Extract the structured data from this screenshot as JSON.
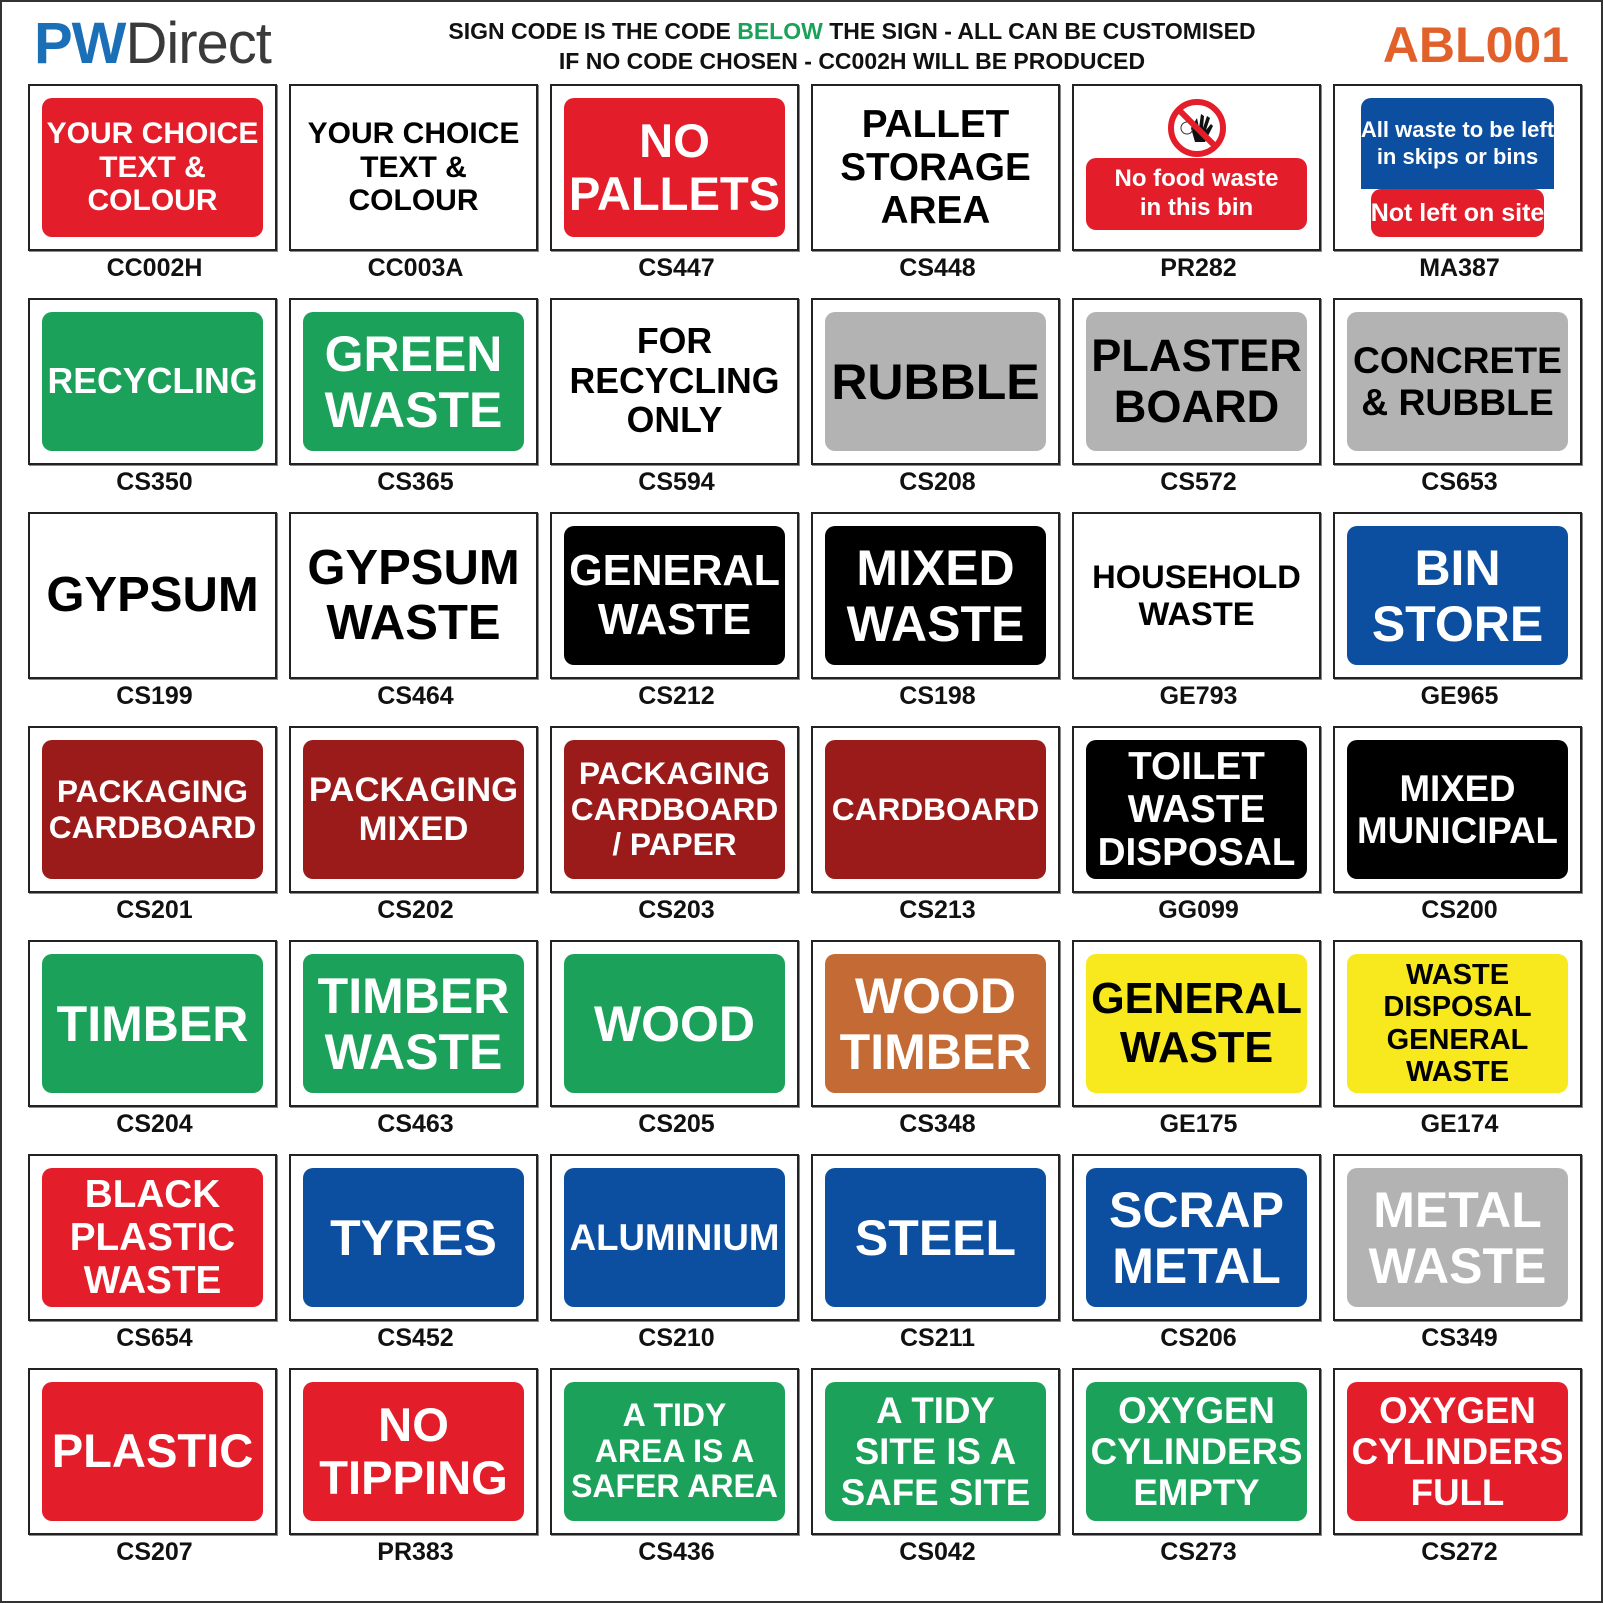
{
  "header": {
    "logo_pw": "PW",
    "logo_direct": "Direct",
    "line1_a": "SIGN CODE IS THE CODE ",
    "line1_highlight": "BELOW",
    "line1_b": " THE SIGN - ALL CAN BE CUSTOMISED",
    "line2": "IF NO CODE CHOSEN - CC002H WILL BE PRODUCED",
    "ref": "ABL001",
    "highlight_color": "#1ba15a",
    "ref_color": "#e2612a"
  },
  "colors": {
    "red": "#e31e2a",
    "green": "#1ba15a",
    "grey": "#b3b3b3",
    "black": "#000000",
    "maroon": "#9b1a1a",
    "blue": "#0c4fa0",
    "yellow": "#f7e91e",
    "orange": "#c46a34",
    "white": "#ffffff"
  },
  "signs": [
    {
      "code": "CC002H",
      "text": "YOUR CHOICE\nTEXT &\nCOLOUR",
      "bg": "red",
      "fg": "white"
    },
    {
      "code": "CC003A",
      "text": "YOUR CHOICE\nTEXT &\nCOLOUR",
      "bg": "white",
      "fg": "black"
    },
    {
      "code": "CS447",
      "text": "NO\nPALLETS",
      "bg": "red",
      "fg": "white"
    },
    {
      "code": "CS448",
      "text": "PALLET\nSTORAGE\nAREA",
      "bg": "white",
      "fg": "black"
    },
    {
      "code": "PR282",
      "type": "prohibition",
      "icon": "no-touching-prohibition-icon",
      "text": "No food waste\nin this bin",
      "bg": "red",
      "fg": "white"
    },
    {
      "code": "MA387",
      "type": "split",
      "text": "All waste to be left\nin skips or bins",
      "text2": "Not left on site",
      "bg": "blue",
      "bg2": "red",
      "fg": "white"
    },
    {
      "code": "CS350",
      "text": "RECYCLING",
      "bg": "green",
      "fg": "white"
    },
    {
      "code": "CS365",
      "text": "GREEN\nWASTE",
      "bg": "green",
      "fg": "white"
    },
    {
      "code": "CS594",
      "text": "FOR\nRECYCLING\nONLY",
      "bg": "white",
      "fg": "black"
    },
    {
      "code": "CS208",
      "text": "RUBBLE",
      "bg": "grey",
      "fg": "black"
    },
    {
      "code": "CS572",
      "text": "PLASTER\nBOARD",
      "bg": "grey",
      "fg": "black"
    },
    {
      "code": "CS653",
      "text": "CONCRETE\n& RUBBLE",
      "bg": "grey",
      "fg": "black"
    },
    {
      "code": "CS199",
      "text": "GYPSUM",
      "bg": "white",
      "fg": "black"
    },
    {
      "code": "CS464",
      "text": "GYPSUM\nWASTE",
      "bg": "white",
      "fg": "black"
    },
    {
      "code": "CS212",
      "text": "GENERAL\nWASTE",
      "bg": "black",
      "fg": "white"
    },
    {
      "code": "CS198",
      "text": "MIXED\nWASTE",
      "bg": "black",
      "fg": "white"
    },
    {
      "code": "GE793",
      "text": "HOUSEHOLD\nWASTE",
      "bg": "white",
      "fg": "black"
    },
    {
      "code": "GE965",
      "text": "BIN\nSTORE",
      "bg": "blue",
      "fg": "white"
    },
    {
      "code": "CS201",
      "text": "PACKAGING\nCARDBOARD",
      "bg": "maroon",
      "fg": "white"
    },
    {
      "code": "CS202",
      "text": "PACKAGING\nMIXED",
      "bg": "maroon",
      "fg": "white"
    },
    {
      "code": "CS203",
      "text": "PACKAGING\nCARDBOARD\n/ PAPER",
      "bg": "maroon",
      "fg": "white"
    },
    {
      "code": "CS213",
      "text": "CARDBOARD",
      "bg": "maroon",
      "fg": "white"
    },
    {
      "code": "GG099",
      "text": "TOILET\nWASTE\nDISPOSAL",
      "bg": "black",
      "fg": "white"
    },
    {
      "code": "CS200",
      "text": "MIXED\nMUNICIPAL",
      "bg": "black",
      "fg": "white"
    },
    {
      "code": "CS204",
      "text": "TIMBER",
      "bg": "green",
      "fg": "white"
    },
    {
      "code": "CS463",
      "text": "TIMBER\nWASTE",
      "bg": "green",
      "fg": "white"
    },
    {
      "code": "CS205",
      "text": "WOOD",
      "bg": "green",
      "fg": "white"
    },
    {
      "code": "CS348",
      "text": "WOOD\nTIMBER",
      "bg": "orange",
      "fg": "white"
    },
    {
      "code": "GE175",
      "text": "GENERAL\nWASTE",
      "bg": "yellow",
      "fg": "black"
    },
    {
      "code": "GE174",
      "text": "WASTE\nDISPOSAL\nGENERAL\nWASTE",
      "bg": "yellow",
      "fg": "black"
    },
    {
      "code": "CS654",
      "text": "BLACK\nPLASTIC\nWASTE",
      "bg": "red",
      "fg": "white"
    },
    {
      "code": "CS452",
      "text": "TYRES",
      "bg": "blue",
      "fg": "white"
    },
    {
      "code": "CS210",
      "text": "ALUMINIUM",
      "bg": "blue",
      "fg": "white"
    },
    {
      "code": "CS211",
      "text": "STEEL",
      "bg": "blue",
      "fg": "white"
    },
    {
      "code": "CS206",
      "text": "SCRAP\nMETAL",
      "bg": "blue",
      "fg": "white"
    },
    {
      "code": "CS349",
      "text": "METAL\nWASTE",
      "bg": "grey",
      "fg": "white"
    },
    {
      "code": "CS207",
      "text": "PLASTIC",
      "bg": "red",
      "fg": "white"
    },
    {
      "code": "PR383",
      "text": "NO\nTIPPING",
      "bg": "red",
      "fg": "white"
    },
    {
      "code": "CS436",
      "text": "A TIDY\nAREA IS A\nSAFER AREA",
      "bg": "green",
      "fg": "white"
    },
    {
      "code": "CS042",
      "text": "A TIDY\nSITE IS A\nSAFE SITE",
      "bg": "green",
      "fg": "white"
    },
    {
      "code": "CS273",
      "text": "OXYGEN\nCYLINDERS\nEMPTY",
      "bg": "green",
      "fg": "white"
    },
    {
      "code": "CS272",
      "text": "OXYGEN\nCYLINDERS\nFULL",
      "bg": "red",
      "fg": "white"
    }
  ]
}
